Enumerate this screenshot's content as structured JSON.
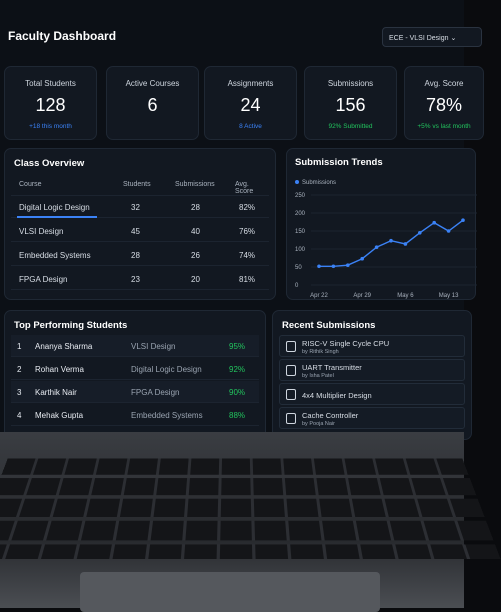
{
  "header": {
    "title": "Faculty Dashboard",
    "course_selector": "ECE - VLSI Design"
  },
  "stats": [
    {
      "label": "Total Students",
      "value": "128",
      "note": "+18 this month"
    },
    {
      "label": "Active Courses",
      "value": "6"
    },
    {
      "label": "Assignments",
      "value": "24",
      "note": "8 Active"
    },
    {
      "label": "Submissions",
      "value": "156",
      "note": "92% Submitted"
    },
    {
      "label": "Avg. Score",
      "value": "78%",
      "note": "+5% vs last month"
    }
  ],
  "class_overview": {
    "title": "Class Overview",
    "columns": [
      "Course",
      "Students",
      "Submissions",
      "Avg. Score"
    ],
    "rows": [
      [
        "Digital Logic Design",
        "32",
        "28",
        "82%"
      ],
      [
        "VLSI Design",
        "45",
        "40",
        "76%"
      ],
      [
        "Embedded Systems",
        "28",
        "26",
        "74%"
      ],
      [
        "FPGA Design",
        "23",
        "20",
        "81%"
      ]
    ]
  },
  "chart_data": {
    "type": "line",
    "title": "Submission Trends",
    "categories": [
      "Apr 22",
      null,
      null,
      "Apr 29",
      null,
      null,
      "May 6",
      null,
      null,
      "May 13",
      null
    ],
    "series": [
      {
        "name": "Submissions",
        "color": "#3b82f6",
        "values": [
          52,
          52,
          55,
          73,
          105,
          123,
          114,
          145,
          173,
          150,
          180
        ]
      }
    ],
    "ylim": [
      0,
      250
    ],
    "yticks": [
      0,
      50,
      100,
      150,
      200,
      250
    ],
    "grid": true
  },
  "top_students": {
    "title": "Top Performing Students",
    "rows": [
      [
        "1",
        "Ananya Sharma",
        "VLSI Design",
        "95%"
      ],
      [
        "2",
        "Rohan Verma",
        "Digital Logic Design",
        "92%"
      ],
      [
        "3",
        "Karthik Nair",
        "FPGA Design",
        "90%"
      ],
      [
        "4",
        "Mehak Gupta",
        "Embedded Systems",
        "88%"
      ]
    ]
  },
  "recent_submissions": {
    "title": "Recent Submissions",
    "items": [
      {
        "title": "RISC-V Single Cycle CPU",
        "by": "by Rithik Singh"
      },
      {
        "title": "UART Transmitter",
        "by": "by Isha Patel"
      },
      {
        "title": "4x4 Multiplier Design"
      },
      {
        "title": "Cache Controller",
        "by": "by Pooja Nair"
      }
    ]
  }
}
